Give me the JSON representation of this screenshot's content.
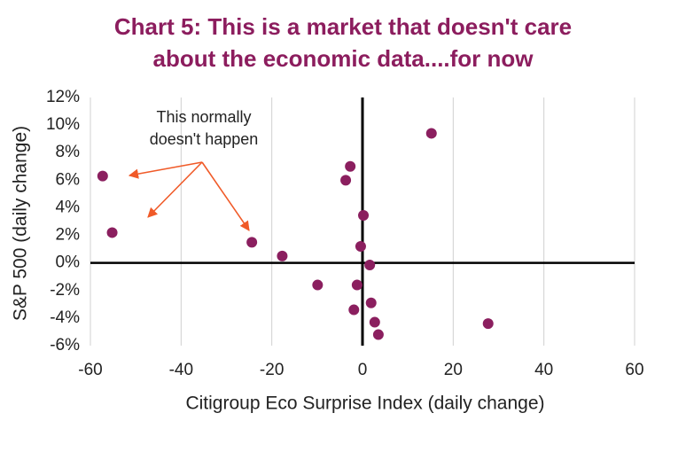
{
  "chart_data": {
    "type": "scatter",
    "title": [
      "Chart 5: This is a market that doesn't care",
      "about the economic data....for now"
    ],
    "x_label": "Citigroup Eco Surprise Index (daily change)",
    "y_label": "S&P 500 (daily change)",
    "annotation": [
      "This normally",
      "doesn't happen"
    ],
    "color": "#8b1f5f",
    "x": [
      -57.3,
      -55.2,
      -24.4,
      -17.7,
      -9.9,
      -2.7,
      -3.7,
      0.2,
      -0.4,
      1.6,
      -1.2,
      1.9,
      -1.9,
      2.7,
      3.5,
      15.2,
      27.7
    ],
    "values": [
      6.3,
      2.2,
      1.5,
      0.5,
      -1.6,
      7.0,
      6.0,
      3.45,
      1.2,
      -0.15,
      -1.6,
      -2.9,
      -3.4,
      -4.3,
      -5.2,
      9.4,
      -4.4
    ],
    "xlim": [
      -60,
      60
    ],
    "xticks": [
      -60,
      -40,
      -20,
      0,
      20,
      40,
      60
    ],
    "ylim": [
      -6,
      12
    ],
    "yticks": [
      {
        "value": -6,
        "label": "-6%"
      },
      {
        "value": -4,
        "label": "-4%"
      },
      {
        "value": -2,
        "label": "-2%"
      },
      {
        "value": 0,
        "label": "0%"
      },
      {
        "value": 2,
        "label": "2%"
      },
      {
        "value": 4,
        "label": "4%"
      },
      {
        "value": 6,
        "label": "6%"
      },
      {
        "value": 8,
        "label": "8%"
      },
      {
        "value": 10,
        "label": "10%"
      },
      {
        "value": 12,
        "label": "12%"
      }
    ],
    "grid": true
  }
}
